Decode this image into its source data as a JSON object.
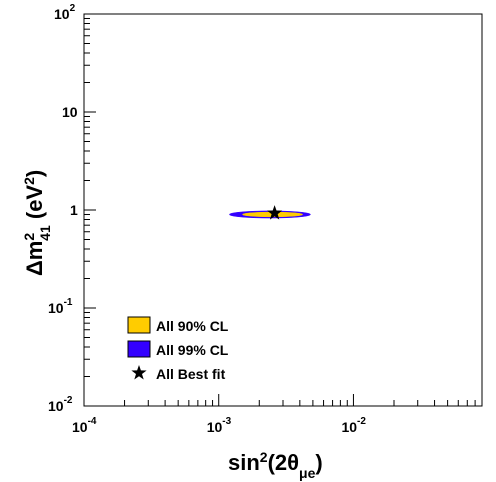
{
  "chart_data": {
    "type": "contour",
    "xlabel": {
      "base": "sin",
      "sup": "2",
      "paren_open": "(2θ",
      "sub": "μe",
      "paren_close": ")"
    },
    "ylabel": {
      "delta": "Δm",
      "sup": "2",
      "sub": "41",
      "unit_open": " (eV",
      "unit_sup": "2",
      "unit_close": ")"
    },
    "xscale": "log",
    "yscale": "log",
    "xlim": [
      0.0001,
      0.09
    ],
    "ylim": [
      0.01,
      100
    ],
    "grid": false,
    "legend_position": "bottom-left",
    "x_ticks": [
      {
        "value": 0.0001,
        "base": "10",
        "exp": "-4"
      },
      {
        "value": 0.001,
        "base": "10",
        "exp": "-3"
      },
      {
        "value": 0.01,
        "base": "10",
        "exp": "-2"
      }
    ],
    "y_ticks": [
      {
        "value": 0.01,
        "base": "10",
        "exp": "-2"
      },
      {
        "value": 0.1,
        "base": "10",
        "exp": "-1"
      },
      {
        "value": 1,
        "base": "1",
        "exp": ""
      },
      {
        "value": 10,
        "base": "10",
        "exp": ""
      },
      {
        "value": 100,
        "base": "10",
        "exp": "2"
      }
    ],
    "series": [
      {
        "name": "All 99% CL",
        "color": "#3300ff",
        "kind": "region",
        "center": [
          0.0025,
          0.9
        ],
        "x_range": [
          0.0012,
          0.0048
        ],
        "y_range": [
          0.82,
          0.97
        ]
      },
      {
        "name": "All 90% CL",
        "color": "#ffcc00",
        "kind": "region",
        "center": [
          0.0025,
          0.9
        ],
        "x_range": [
          0.0015,
          0.0042
        ],
        "y_range": [
          0.85,
          0.95
        ]
      },
      {
        "name": "All Best fit",
        "color": "#000000",
        "kind": "point",
        "x": 0.0026,
        "y": 0.93
      }
    ]
  }
}
